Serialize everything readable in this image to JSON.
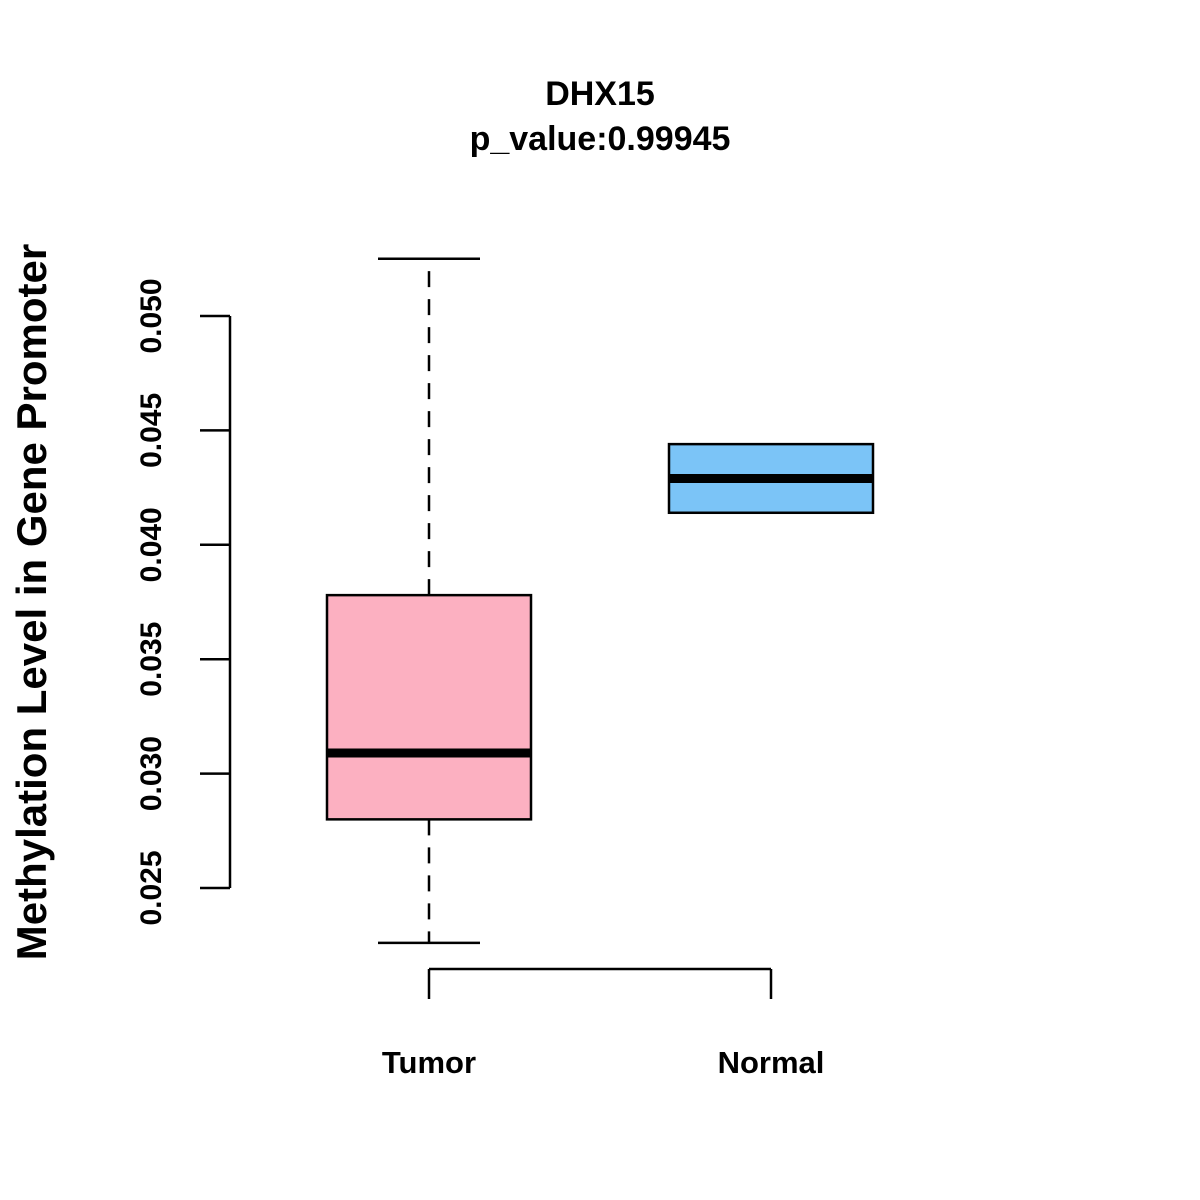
{
  "chart_data": {
    "type": "boxplot",
    "title": "DHX15",
    "subtitle": "p_value:0.99945",
    "ylabel": "Methylation Level in Gene Promoter",
    "xlabel": "",
    "categories": [
      "Tumor",
      "Normal"
    ],
    "ylim": [
      0.025,
      0.05
    ],
    "yticks": [
      "0.025",
      "0.030",
      "0.035",
      "0.040",
      "0.045",
      "0.050"
    ],
    "boxes": [
      {
        "name": "Tumor",
        "whisker_low": 0.0226,
        "q1": 0.028,
        "median": 0.0309,
        "q3": 0.0378,
        "whisker_high": 0.0525,
        "color": "#FCB0C1"
      },
      {
        "name": "Normal",
        "whisker_low": 0.0414,
        "q1": 0.0414,
        "median": 0.0429,
        "q3": 0.0444,
        "whisker_high": 0.0444,
        "color": "#7BC4F7"
      }
    ],
    "grid": false,
    "legend": "none"
  }
}
